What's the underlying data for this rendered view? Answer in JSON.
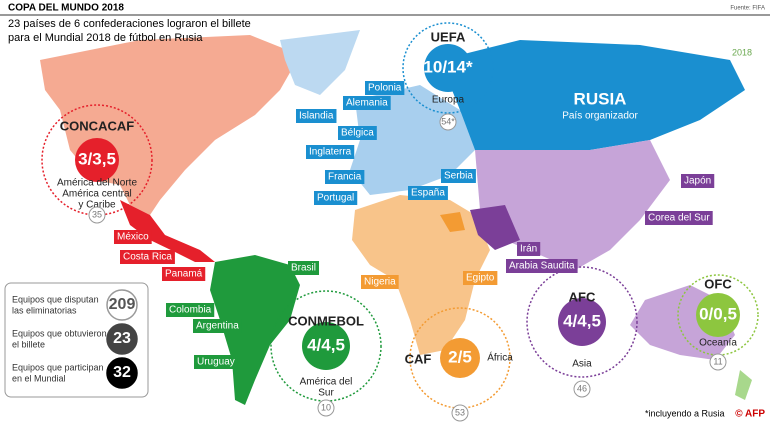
{
  "header": {
    "title": "COPA DEL MUNDO 2018",
    "source": "Fuente: FIFA",
    "subtitle": [
      "23 países de 6 confederaciones lograron el billete",
      "para el Mundial 2018 de fútbol en Rusia"
    ],
    "logo": "2018"
  },
  "host": {
    "name": "RUSIA",
    "role": "País organizador"
  },
  "confederations": [
    {
      "name": "CONCACAF",
      "quota": "3/3,5",
      "region": [
        "América del Norte",
        "América central",
        "y Caribe"
      ],
      "total": "35"
    },
    {
      "name": "UEFA",
      "quota": "10/14*",
      "region": [
        "Europa"
      ],
      "total": "54*"
    },
    {
      "name": "CONMEBOL",
      "quota": "4/4,5",
      "region": [
        "América del",
        "Sur"
      ],
      "total": "10"
    },
    {
      "name": "CAF",
      "quota": "2/5",
      "region": [
        "África"
      ],
      "total": "53"
    },
    {
      "name": "AFC",
      "quota": "4/4,5",
      "region": [
        "Asia"
      ],
      "total": "46"
    },
    {
      "name": "OFC",
      "quota": "0/0,5",
      "region": [
        "Oceanía"
      ],
      "total": "11"
    }
  ],
  "countries": [
    "Polonia",
    "Alemania",
    "Islandia",
    "Bélgica",
    "Inglaterra",
    "Francia",
    "Portugal",
    "España",
    "Serbia",
    "México",
    "Costa Rica",
    "Panamá",
    "Brasil",
    "Colombia",
    "Argentina",
    "Uruguay",
    "Nigeria",
    "Egipto",
    "Irán",
    "Arabia Saudita",
    "Japón",
    "Corea del Sur"
  ],
  "legend": [
    {
      "label": [
        "Equipos que disputan",
        "las eliminatorias"
      ],
      "value": "209"
    },
    {
      "label": [
        "Equipos que obtuvieron",
        "el billete"
      ],
      "value": "23"
    },
    {
      "label": [
        "Equipos que participan",
        "en el Mundial"
      ],
      "value": "32"
    }
  ],
  "footnote": "*incluyendo a Rusia",
  "credit": "© AFP"
}
